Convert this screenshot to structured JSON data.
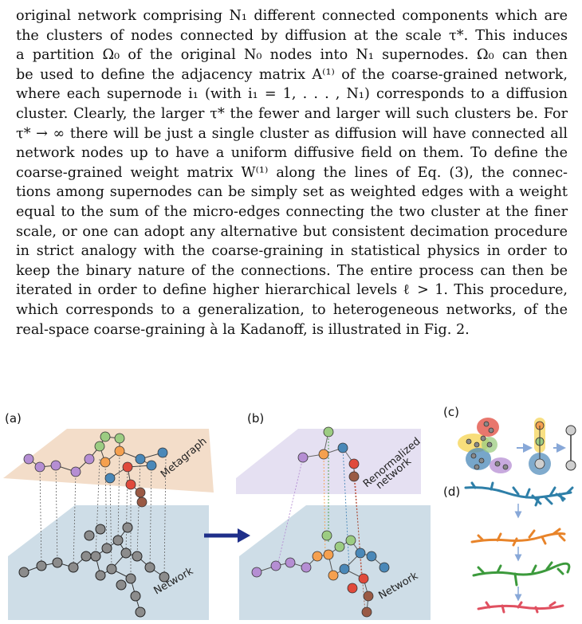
{
  "paragraph": {
    "lines": [
      "original network comprising N₁ different connected components which are",
      "the clusters of nodes connected by diffusion at the scale τ*.  This induces",
      "a partition Ω₀ of the original N₀ nodes into N₁ supernodes.  Ω₀ can then",
      "be used to define the adjacency matrix A⁽¹⁾ of the coarse-grained network,",
      "where each supernode i₁ (with i₁ = 1, . . . , N₁) corresponds to a diffusion",
      "cluster. Clearly, the larger τ* the fewer and larger will such clusters be. For",
      "τ* → ∞ there will be just a single cluster as diffusion will have connected all",
      "network nodes up to have a uniform diffusive field on them.  To define the",
      "coarse-grained weight matrix W⁽¹⁾ along the lines of Eq. (3), the connec-",
      "tions among supernodes can be simply set as weighted edges with a weight",
      "equal to the sum of the micro-edges connecting the two cluster at the finer",
      "scale, or one can adopt any alternative but consistent decimation procedure",
      "in strict analogy with the coarse-graining in statistical physics in order to",
      "keep the binary nature of the connections. The entire process can then be",
      "iterated in order to define higher hierarchical levels ℓ > 1. This procedure,",
      "which corresponds to a generalization, to heterogeneous networks, of the",
      "real-space coarse-graining à la Kadanoff, is illustrated in Fig. 2."
    ]
  },
  "figure": {
    "panel_a": {
      "label": "(a)",
      "top_plane_label": "Metagraph",
      "bottom_plane_label": "Network"
    },
    "panel_b": {
      "label": "(b)",
      "top_plane_label_1": "Renormalized",
      "top_plane_label_2": "network",
      "bottom_plane_label": "Network"
    },
    "panel_c": {
      "label": "(c)"
    },
    "panel_d": {
      "label": "(d)"
    },
    "colors": {
      "metagraph_plane": "#f2d9c3",
      "network_plane": "#c9d9e4",
      "renormalized_plane": "#e4def1",
      "arrow": "#1f2f8a",
      "purple": "#b58ed3",
      "green": "#9ccc82",
      "orange": "#f5a04f",
      "blue": "#4a88b8",
      "red": "#e04a3c",
      "brown": "#9a5a45",
      "gray_node": "#8c8c8c",
      "branch_blue": "#2e7fa8",
      "branch_orange": "#e8842a",
      "branch_green": "#3c9a3c",
      "branch_red": "#e05060"
    }
  }
}
